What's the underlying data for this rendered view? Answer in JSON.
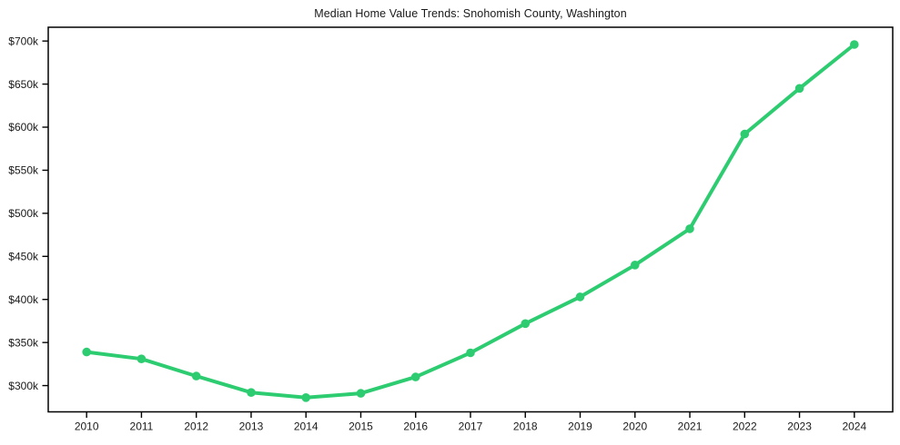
{
  "chart_data": {
    "type": "line",
    "title": "Median Home Value Trends: Snohomish County, Washington",
    "x": [
      2010,
      2011,
      2012,
      2013,
      2014,
      2015,
      2016,
      2017,
      2018,
      2019,
      2020,
      2021,
      2022,
      2023,
      2024
    ],
    "x_tick_labels": [
      "2010",
      "2011",
      "2012",
      "2013",
      "2014",
      "2015",
      "2016",
      "2017",
      "2018",
      "2019",
      "2020",
      "2021",
      "2022",
      "2023",
      "2024"
    ],
    "values": [
      339,
      331,
      311,
      292,
      286,
      291,
      310,
      338,
      372,
      403,
      440,
      482,
      592,
      645,
      696
    ],
    "y_ticks": [
      300,
      350,
      400,
      450,
      500,
      550,
      600,
      650,
      700
    ],
    "y_tick_labels": [
      "$300k",
      "$350k",
      "$400k",
      "$450k",
      "$500k",
      "$550k",
      "$600k",
      "$650k",
      "$700k"
    ],
    "ylim": [
      269.5,
      716.0
    ],
    "xlim": [
      2009.3,
      2024.7
    ],
    "grid": false,
    "legend": false,
    "colors": {
      "line": "#2ecc71",
      "marker": "#2ecc71",
      "axis": "#000000",
      "text": "#1a1a1a",
      "background": "#ffffff"
    }
  }
}
